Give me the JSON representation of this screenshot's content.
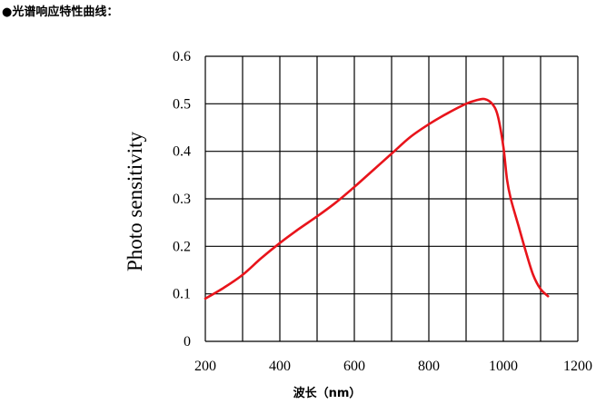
{
  "heading": "●光谱响应特性曲线：",
  "chart_data": {
    "type": "line",
    "title": "",
    "xlabel": "波长（nm）",
    "ylabel": "Photo sensitivity",
    "xlim": [
      200,
      1200
    ],
    "ylim": [
      0,
      0.6
    ],
    "xticks": [
      200,
      400,
      600,
      800,
      1000,
      1200
    ],
    "xtick_labels": [
      "200",
      "400",
      "600",
      "800",
      "1000",
      "1200"
    ],
    "yticks": [
      0,
      0.1,
      0.2,
      0.3,
      0.4,
      0.5,
      0.6
    ],
    "ytick_labels": [
      "0",
      "0.1",
      "0.2",
      "0.3",
      "0.4",
      "0.5",
      "0.6"
    ],
    "x_grid_step": 100,
    "grid": true,
    "line_color": "#e8141b",
    "series": [
      {
        "x": [
          200,
          250,
          300,
          350,
          400,
          450,
          500,
          550,
          600,
          650,
          700,
          750,
          800,
          850,
          900,
          930,
          950,
          970,
          985,
          1000,
          1010,
          1020,
          1040,
          1060,
          1080,
          1100,
          1120
        ],
        "values": [
          0.09,
          0.113,
          0.14,
          0.175,
          0.207,
          0.236,
          0.263,
          0.292,
          0.325,
          0.36,
          0.395,
          0.43,
          0.457,
          0.48,
          0.5,
          0.508,
          0.51,
          0.5,
          0.475,
          0.41,
          0.34,
          0.3,
          0.245,
          0.19,
          0.14,
          0.11,
          0.095
        ]
      }
    ]
  }
}
